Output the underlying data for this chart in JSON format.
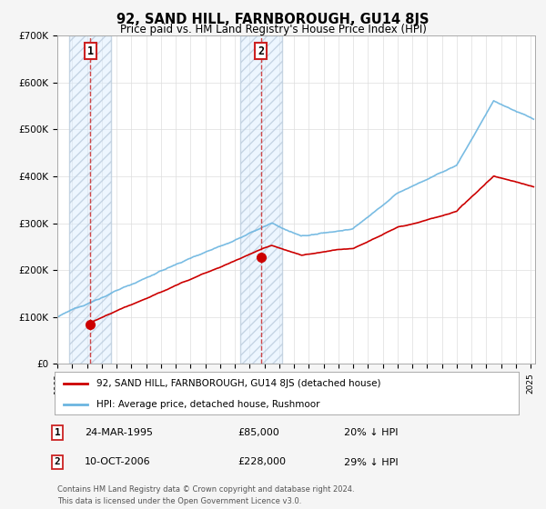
{
  "title": "92, SAND HILL, FARNBOROUGH, GU14 8JS",
  "subtitle": "Price paid vs. HM Land Registry's House Price Index (HPI)",
  "sale1_year": 1995.22,
  "sale1_price": 85000,
  "sale2_year": 2006.78,
  "sale2_price": 228000,
  "xmin": 1993.0,
  "xmax": 2025.3,
  "ymin": 0,
  "ymax": 700000,
  "hpi_line_color": "#6bb5e0",
  "price_color": "#cc0000",
  "dashed_color": "#cc3333",
  "legend_line1": "92, SAND HILL, FARNBOROUGH, GU14 8JS (detached house)",
  "legend_line2": "HPI: Average price, detached house, Rushmoor",
  "sale1_date": "24-MAR-1995",
  "sale1_amount": "£85,000",
  "sale1_pct": "20% ↓ HPI",
  "sale2_date": "10-OCT-2006",
  "sale2_amount": "£228,000",
  "sale2_pct": "29% ↓ HPI",
  "footnote1": "Contains HM Land Registry data © Crown copyright and database right 2024.",
  "footnote2": "This data is licensed under the Open Government Licence v3.0.",
  "background_color": "#f5f5f5",
  "plot_bg_color": "#ffffff"
}
